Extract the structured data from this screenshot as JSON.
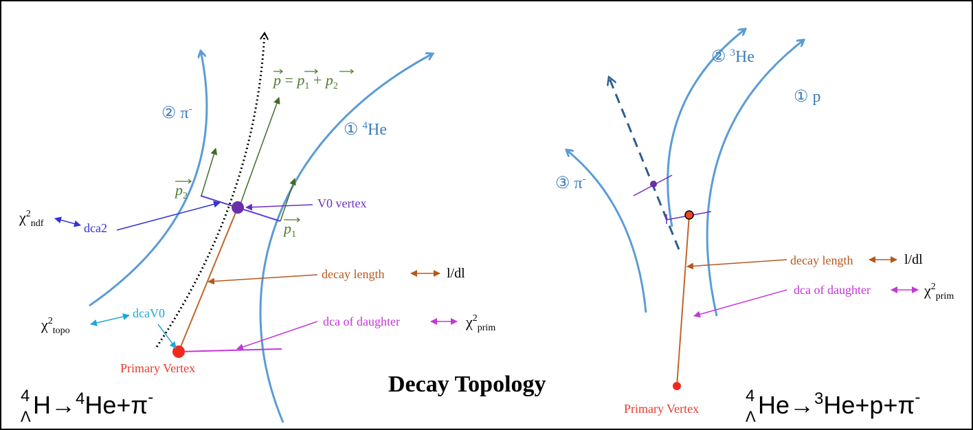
{
  "title": "Decay Topology",
  "left": {
    "pion_track": {
      "number": "②",
      "name": "π",
      "charge": "-"
    },
    "helium_track": {
      "number": "①",
      "mass": "4",
      "name": "He"
    },
    "momentum": {
      "p": "p",
      "eq": "=",
      "p1": "p",
      "p1_sub": "1",
      "plus": "+",
      "p2": "p",
      "p2_sub": "2"
    },
    "p2_label": {
      "p": "p",
      "sub": "2"
    },
    "p1_label": {
      "p": "p",
      "sub": "1"
    },
    "v0_vertex": "V0 vertex",
    "chi2_ndf": {
      "symbol": "χ",
      "sup": "2",
      "sub": "ndf"
    },
    "dca2": "dca2",
    "decay_length": "decay length",
    "l_dl": "l/dl",
    "chi2_topo": {
      "symbol": "χ",
      "sup": "2",
      "sub": "topo"
    },
    "dcaV0": "dcaV0",
    "dca_daughter": "dca of daughter",
    "chi2_prim": {
      "symbol": "χ",
      "sup": "2",
      "sub": "prim"
    },
    "primary_vertex": "Primary Vertex",
    "reaction": {
      "mass": "4",
      "lambda": "Λ",
      "parent": "H→",
      "d1_mass": "4",
      "d1": "He+π",
      "d2_charge": "-"
    }
  },
  "right": {
    "helium3_track": {
      "number": "②",
      "mass": "3",
      "name": "He"
    },
    "proton_track": {
      "number": "①",
      "name": "p"
    },
    "pion_track": {
      "number": "③",
      "name": "π",
      "charge": "-"
    },
    "decay_length": "decay length",
    "l_dl": "l/dl",
    "dca_daughter": "dca of daughter",
    "chi2_prim": {
      "symbol": "χ",
      "sup": "2",
      "sub": "prim"
    },
    "primary_vertex": "Primary Vertex",
    "reaction": {
      "mass": "4",
      "lambda": "Λ",
      "parent": "He→",
      "d1_mass": "3",
      "d1": "He+p+π",
      "d2_charge": "-"
    }
  }
}
